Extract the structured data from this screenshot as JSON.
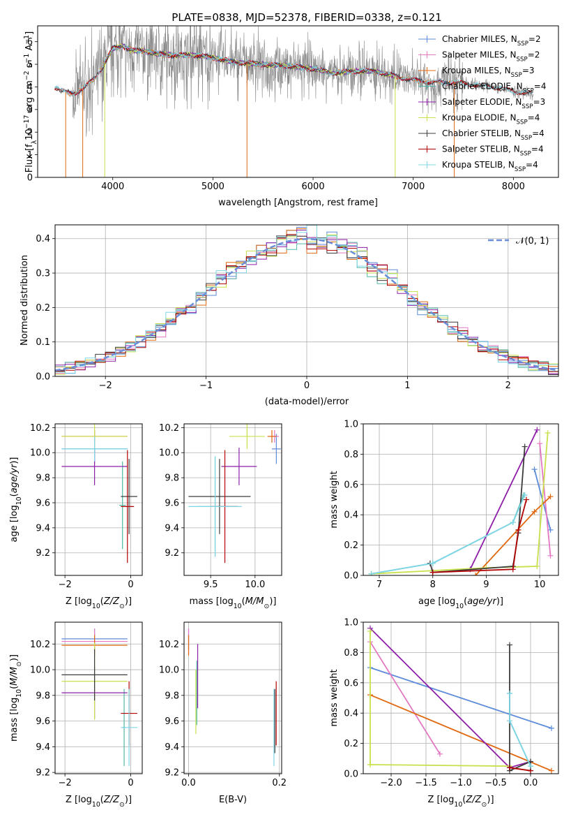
{
  "figure_title": "PLATE=0838, MJD=52378, FIBERID=0338, z=0.121",
  "series_colors": {
    "Chabrier MILES": "#5b8bd9",
    "Salpeter MILES": "#e377c2",
    "Kroupa MILES": "#e0680f",
    "Chabrier ELODIE": "#4fb8a8",
    "Salpeter ELODIE": "#8e1ea8",
    "Kroupa ELODIE": "#c8e04a",
    "Chabrier STELIB": "#3c3c3c",
    "Salpeter STELIB": "#b00000",
    "Kroupa STELIB": "#7fd6e6",
    "normal_curve": "#6a8fd8",
    "data_spectrum": "#888888"
  },
  "chart_data": [
    {
      "id": "spectrum",
      "type": "line",
      "title": "PLATE=0838, MJD=52378, FIBERID=0338, z=0.121",
      "xlabel": "wavelength [Angstrom, rest frame]",
      "ylabel": "Flux [f_λ 10⁻¹⁷ erg cm⁻² s⁻¹ Å⁻¹]",
      "xlim": [
        3250,
        8450
      ],
      "ylim": [
        0,
        6.7
      ],
      "xticks": [
        4000,
        5000,
        6000,
        7000,
        8000
      ],
      "yticks": [
        0,
        1,
        2,
        3,
        4,
        5,
        6
      ],
      "grid": false,
      "legend_position": "top-right",
      "legend": [
        "Chabrier MILES, N_SSP=2",
        "Salpeter MILES, N_SSP=2",
        "Kroupa MILES, N_SSP=3",
        "Chabrier ELODIE, N_SSP=4",
        "Salpeter ELODIE, N_SSP=3",
        "Kroupa ELODIE, N_SSP=4",
        "Chabrier STELIB, N_SSP=4",
        "Salpeter STELIB, N_SSP=4",
        "Kroupa STELIB, N_SSP=4"
      ],
      "model_continuum": {
        "x": [
          3420,
          3500,
          3600,
          3700,
          3800,
          3900,
          4000,
          4100,
          4200,
          4300,
          4400,
          4600,
          4800,
          5000,
          5200,
          5500,
          5800,
          6000,
          6200,
          6400,
          6600,
          6800,
          7000,
          7200,
          7400,
          7600,
          7800,
          8000,
          8200
        ],
        "y": [
          4.0,
          3.8,
          3.7,
          3.9,
          4.3,
          4.9,
          5.7,
          5.8,
          5.6,
          5.6,
          5.5,
          5.4,
          5.4,
          5.3,
          5.1,
          5.0,
          4.9,
          4.8,
          4.6,
          4.7,
          4.7,
          4.5,
          4.3,
          4.2,
          4.2,
          4.1,
          4.0,
          3.8,
          3.7
        ]
      }
    },
    {
      "id": "residuals",
      "type": "line",
      "xlabel": "(data-model)/error",
      "ylabel": "Normed distribution",
      "xlim": [
        -2.5,
        2.5
      ],
      "ylim": [
        0,
        0.44
      ],
      "xticks": [
        -2,
        -1,
        0,
        1,
        2
      ],
      "yticks": [
        0.0,
        0.1,
        0.2,
        0.3,
        0.4
      ],
      "grid": true,
      "legend_position": "top-right",
      "legend": [
        "𝒩(0, 1)"
      ],
      "histogram_bins": 50
    },
    {
      "id": "age_vs_Z",
      "type": "scatter",
      "xlabel": "Z [log₁₀(Z/Z☉)]",
      "ylabel": "age  [log₁₀(age/yr)]",
      "xlim": [
        -2.3,
        0.35
      ],
      "ylim": [
        9.02,
        10.23
      ],
      "xticks": [
        -2,
        0
      ],
      "yticks": [
        9.2,
        9.4,
        9.6,
        9.8,
        10.0,
        10.2
      ],
      "grid": true,
      "points": [
        {
          "series": "Chabrier MILES",
          "x": -1.1,
          "xerr": 1.0,
          "y": 10.03,
          "yerr": 0.12
        },
        {
          "series": "Salpeter MILES",
          "x": -1.1,
          "xerr": 1.0,
          "y": 10.13,
          "yerr": 0.05
        },
        {
          "series": "Kroupa MILES",
          "x": -1.1,
          "xerr": 1.0,
          "y": 10.13,
          "yerr": 0.05
        },
        {
          "series": "Chabrier ELODIE",
          "x": -0.25,
          "xerr": 0.1,
          "y": 9.58,
          "yerr": 0.35
        },
        {
          "series": "Salpeter ELODIE",
          "x": -1.1,
          "xerr": 1.0,
          "y": 9.89,
          "yerr": 0.15
        },
        {
          "series": "Kroupa ELODIE",
          "x": -1.1,
          "xerr": 1.0,
          "y": 10.13,
          "yerr": 0.1
        },
        {
          "series": "Chabrier STELIB",
          "x": -0.05,
          "xerr": 0.25,
          "y": 9.65,
          "yerr": 0.3
        },
        {
          "series": "Salpeter STELIB",
          "x": -0.1,
          "xerr": 0.2,
          "y": 9.57,
          "yerr": 0.45
        },
        {
          "series": "Kroupa STELIB",
          "x": -1.1,
          "xerr": 1.0,
          "y": 10.03,
          "yerr": 0.1
        }
      ]
    },
    {
      "id": "age_vs_mass",
      "type": "scatter",
      "xlabel": "mass [log₁₀(M/M☉)]",
      "xlim": [
        9.2,
        10.3
      ],
      "ylim": [
        9.02,
        10.23
      ],
      "xticks": [
        9.5,
        10.0
      ],
      "yticks": [
        9.2,
        9.4,
        9.6,
        9.8,
        10.0,
        10.2
      ],
      "grid": true,
      "points": [
        {
          "series": "Chabrier MILES",
          "x": 10.24,
          "xerr": 0.05,
          "y": 10.03,
          "yerr": 0.12
        },
        {
          "series": "Salpeter MILES",
          "x": 10.22,
          "xerr": 0.05,
          "y": 10.13,
          "yerr": 0.05
        },
        {
          "series": "Kroupa MILES",
          "x": 10.19,
          "xerr": 0.05,
          "y": 10.13,
          "yerr": 0.05
        },
        {
          "series": "Chabrier ELODIE",
          "x": 9.55,
          "xerr": 0.2,
          "y": 9.57,
          "yerr": 0.4
        },
        {
          "series": "Salpeter ELODIE",
          "x": 9.82,
          "xerr": 0.2,
          "y": 9.89,
          "yerr": 0.15
        },
        {
          "series": "Kroupa ELODIE",
          "x": 9.91,
          "xerr": 0.2,
          "y": 10.13,
          "yerr": 0.1
        },
        {
          "series": "Chabrier STELIB",
          "x": 9.6,
          "xerr": 0.35,
          "y": 9.65,
          "yerr": 0.3
        },
        {
          "series": "Salpeter STELIB",
          "x": 9.66,
          "xerr": 0.15,
          "y": 9.57,
          "yerr": 0.45
        },
        {
          "series": "Kroupa STELIB",
          "x": 9.55,
          "xerr": 0.3,
          "y": 9.57,
          "yerr": 0.4
        }
      ]
    },
    {
      "id": "mass_weight_vs_age",
      "type": "line",
      "xlabel": "age  [log₁₀(age/yr)]",
      "ylabel": "mass weight",
      "xlim": [
        6.7,
        10.35
      ],
      "ylim": [
        0,
        1.0
      ],
      "xticks": [
        7,
        8,
        9,
        10
      ],
      "yticks": [
        0.0,
        0.2,
        0.4,
        0.6,
        0.8,
        1.0
      ],
      "grid": true,
      "series": [
        {
          "name": "Chabrier MILES",
          "x": [
            9.9,
            10.2
          ],
          "y": [
            0.7,
            0.3
          ]
        },
        {
          "name": "Salpeter MILES",
          "x": [
            10.0,
            10.2
          ],
          "y": [
            0.87,
            0.13
          ]
        },
        {
          "name": "Kroupa MILES",
          "x": [
            8.8,
            9.9,
            10.2
          ],
          "y": [
            0.0,
            0.42,
            0.52
          ]
        },
        {
          "name": "Chabrier ELODIE",
          "x": [
            6.85,
            8.0,
            9.5,
            9.7
          ],
          "y": [
            0.01,
            0.08,
            0.35,
            0.53
          ]
        },
        {
          "name": "Salpeter ELODIE",
          "x": [
            8.7,
            9.95
          ],
          "y": [
            0.04,
            0.96
          ]
        },
        {
          "name": "Kroupa ELODIE",
          "x": [
            6.85,
            9.0,
            9.95,
            10.15
          ],
          "y": [
            0.01,
            0.05,
            0.06,
            0.94
          ]
        },
        {
          "name": "Chabrier STELIB",
          "x": [
            7.95,
            8.0,
            9.5,
            9.6,
            9.72
          ],
          "y": [
            0.08,
            0.02,
            0.06,
            0.28,
            0.85
          ]
        },
        {
          "name": "Salpeter STELIB",
          "x": [
            8.0,
            9.5,
            9.6,
            9.75
          ],
          "y": [
            0.02,
            0.04,
            0.3,
            0.5
          ]
        },
        {
          "name": "Kroupa STELIB",
          "x": [
            6.85,
            8.0,
            9.5,
            9.72
          ],
          "y": [
            0.01,
            0.08,
            0.35,
            0.53
          ]
        }
      ]
    },
    {
      "id": "mass_vs_Z",
      "type": "scatter",
      "xlabel": "Z [log₁₀(Z/Z☉)]",
      "ylabel": "mass [log₁₀(M/M☉)]",
      "xlim": [
        -2.3,
        0.35
      ],
      "ylim": [
        9.19,
        10.37
      ],
      "xticks": [
        -2,
        0
      ],
      "yticks": [
        9.2,
        9.4,
        9.6,
        9.8,
        10.0,
        10.2
      ],
      "grid": true,
      "points": [
        {
          "series": "Chabrier MILES",
          "x": -1.1,
          "xerr": 1.0,
          "y": 10.24,
          "yerr": 0.08
        },
        {
          "series": "Salpeter MILES",
          "x": -1.1,
          "xerr": 1.0,
          "y": 10.22,
          "yerr": 0.1
        },
        {
          "series": "Kroupa MILES",
          "x": -1.1,
          "xerr": 1.0,
          "y": 10.19,
          "yerr": 0.08
        },
        {
          "series": "Chabrier ELODIE",
          "x": -0.2,
          "xerr": 0.05,
          "y": 9.55,
          "yerr": 0.3
        },
        {
          "series": "Salpeter ELODIE",
          "x": -1.1,
          "xerr": 1.0,
          "y": 9.82,
          "yerr": 0.2
        },
        {
          "series": "Kroupa ELODIE",
          "x": -1.1,
          "xerr": 1.0,
          "y": 9.91,
          "yerr": 0.3
        },
        {
          "series": "Chabrier STELIB",
          "x": -1.1,
          "xerr": 1.0,
          "y": 9.96,
          "yerr": 0.2
        },
        {
          "series": "Salpeter STELIB",
          "x": -0.05,
          "xerr": 0.25,
          "y": 9.66,
          "yerr": 0.25
        },
        {
          "series": "Kroupa STELIB",
          "x": -0.05,
          "xerr": 0.25,
          "y": 9.55,
          "yerr": 0.3
        }
      ]
    },
    {
      "id": "mass_vs_ebv",
      "type": "scatter",
      "xlabel": "E(B-V)",
      "xlim": [
        -0.01,
        0.205
      ],
      "ylim": [
        9.19,
        10.37
      ],
      "xticks": [
        0.0,
        0.2
      ],
      "yticks": [
        9.2,
        9.4,
        9.6,
        9.8,
        10.0,
        10.2
      ],
      "grid": true,
      "points": [
        {
          "series": "Chabrier MILES",
          "x": 0.0,
          "y": 10.24,
          "yerr": 0.08
        },
        {
          "series": "Salpeter MILES",
          "x": 0.0,
          "y": 10.22,
          "yerr": 0.1
        },
        {
          "series": "Kroupa MILES",
          "x": 0.0,
          "y": 10.19,
          "yerr": 0.08
        },
        {
          "series": "Chabrier ELODIE",
          "x": 0.018,
          "y": 9.82,
          "yerr": 0.25
        },
        {
          "series": "Salpeter ELODIE",
          "x": 0.02,
          "y": 9.95,
          "yerr": 0.25
        },
        {
          "series": "Kroupa ELODIE",
          "x": 0.016,
          "y": 9.75,
          "yerr": 0.25
        },
        {
          "series": "Chabrier STELIB",
          "x": 0.19,
          "y": 9.6,
          "yerr": 0.25
        },
        {
          "series": "Salpeter STELIB",
          "x": 0.193,
          "y": 9.66,
          "yerr": 0.25
        },
        {
          "series": "Kroupa STELIB",
          "x": 0.188,
          "y": 9.55,
          "yerr": 0.3
        }
      ]
    },
    {
      "id": "mass_weight_vs_Z",
      "type": "line",
      "xlabel": "Z [log₁₀(Z/Z☉)]",
      "ylabel": "mass weight",
      "xlim": [
        -2.4,
        0.4
      ],
      "ylim": [
        0,
        1.0
      ],
      "xticks": [
        -2.0,
        -1.5,
        -1.0,
        -0.5,
        0.0
      ],
      "yticks": [
        0.0,
        0.2,
        0.4,
        0.6,
        0.8,
        1.0
      ],
      "grid": true,
      "series": [
        {
          "name": "Chabrier MILES",
          "x": [
            -2.3,
            0.3
          ],
          "y": [
            0.7,
            0.3
          ]
        },
        {
          "name": "Salpeter MILES",
          "x": [
            -2.3,
            -1.3
          ],
          "y": [
            0.87,
            0.13
          ]
        },
        {
          "name": "Kroupa MILES",
          "x": [
            -2.3,
            0.3
          ],
          "y": [
            0.52,
            0.02
          ]
        },
        {
          "name": "Chabrier ELODIE",
          "x": [
            -0.3,
            -0.3,
            0.0
          ],
          "y": [
            0.53,
            0.35,
            0.05
          ]
        },
        {
          "name": "Salpeter ELODIE",
          "x": [
            -2.3,
            -0.3,
            0.0
          ],
          "y": [
            0.96,
            0.04,
            0.08
          ]
        },
        {
          "name": "Kroupa ELODIE",
          "x": [
            -2.3,
            -2.3,
            -0.3,
            -2.3
          ],
          "y": [
            0.94,
            0.06,
            0.05,
            0.06
          ]
        },
        {
          "name": "Chabrier STELIB",
          "x": [
            -0.3,
            -0.3,
            0.0,
            0.0
          ],
          "y": [
            0.85,
            0.02,
            0.08,
            0.02
          ]
        },
        {
          "name": "Salpeter STELIB",
          "x": [
            -0.3,
            0.0
          ],
          "y": [
            0.04,
            0.02
          ]
        },
        {
          "name": "Kroupa STELIB",
          "x": [
            -0.3,
            -0.3,
            0.0
          ],
          "y": [
            0.53,
            0.35,
            0.05
          ]
        }
      ]
    }
  ]
}
